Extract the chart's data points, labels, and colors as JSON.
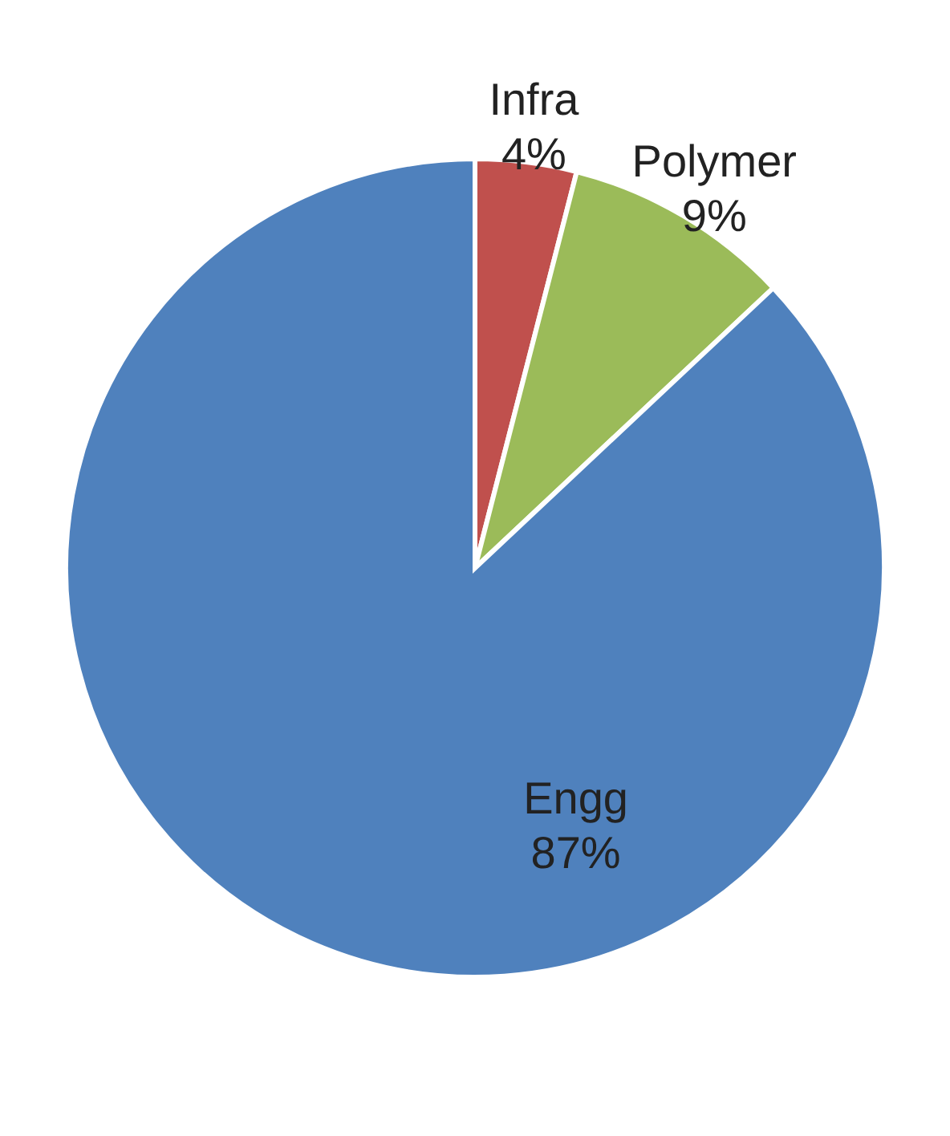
{
  "chart_data": {
    "type": "pie",
    "categories": [
      "Infra",
      "Polymer",
      "Engg"
    ],
    "values": [
      4,
      9,
      87
    ],
    "colors": [
      "#c0504d",
      "#9bbb59",
      "#4f81bd"
    ],
    "value_labels": [
      "4%",
      "9%",
      "87%"
    ]
  }
}
